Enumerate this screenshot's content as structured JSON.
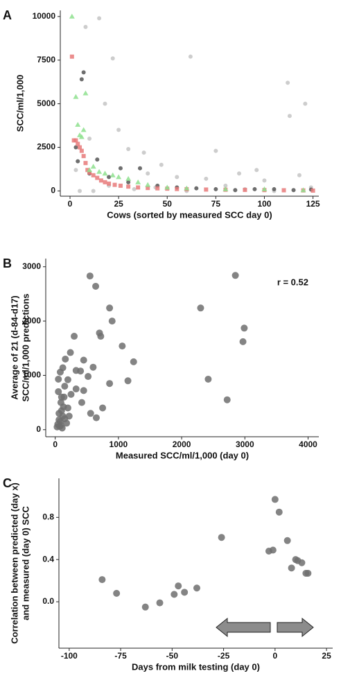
{
  "chart_data": [
    {
      "type": "scatter",
      "panel": "A",
      "x_label": "Cows (sorted by measured SCC day 0)",
      "y_label": [
        "SCC/ml/1,000"
      ],
      "xlim": [
        -5,
        128
      ],
      "ylim": [
        -300,
        10350
      ],
      "xticks": [
        0,
        25,
        50,
        75,
        100,
        125
      ],
      "yticks": [
        0,
        2500,
        5000,
        7500,
        10000
      ],
      "series": [
        {
          "color": "#c4c4c4",
          "marker": "circle",
          "x": [
            15,
            22,
            8,
            30,
            62,
            75,
            87,
            96,
            112,
            113,
            121,
            18,
            25,
            38,
            47,
            55,
            3,
            10,
            40,
            70,
            100,
            118,
            5,
            12,
            20,
            33,
            44,
            60,
            80,
            90,
            105,
            124
          ],
          "values": [
            9900,
            7600,
            9400,
            2400,
            7700,
            2300,
            1000,
            1200,
            6200,
            4300,
            5000,
            5000,
            3500,
            2200,
            1500,
            800,
            1200,
            3000,
            1000,
            700,
            600,
            900,
            0,
            0,
            300,
            100,
            200,
            0,
            300,
            100,
            0,
            200
          ]
        },
        {
          "color": "#555555",
          "marker": "circle",
          "x": [
            3,
            7,
            6,
            4,
            10,
            14,
            20,
            26,
            30,
            36,
            45,
            55,
            65,
            75,
            85,
            95,
            105,
            115,
            124
          ],
          "values": [
            2500,
            6800,
            6400,
            1700,
            1000,
            1800,
            800,
            1300,
            500,
            1300,
            300,
            200,
            150,
            100,
            50,
            100,
            100,
            50,
            80
          ]
        },
        {
          "color": "#e87a7a",
          "marker": "square",
          "x": [
            1,
            2,
            3,
            4,
            5,
            6,
            7,
            8,
            9,
            10,
            12,
            14,
            16,
            18,
            20,
            23,
            26,
            30,
            35,
            40,
            45,
            50,
            55,
            60,
            70,
            80,
            90,
            100,
            110,
            120,
            125
          ],
          "values": [
            7700,
            2900,
            2900,
            2700,
            2500,
            2300,
            2000,
            1600,
            1200,
            1050,
            900,
            750,
            600,
            500,
            420,
            350,
            300,
            250,
            200,
            170,
            150,
            130,
            110,
            100,
            80,
            70,
            60,
            50,
            40,
            30,
            20
          ]
        },
        {
          "color": "#8ee08e",
          "marker": "triangle",
          "x": [
            1,
            3,
            4,
            5,
            6,
            8,
            7,
            10,
            12,
            15,
            18,
            22,
            25,
            30,
            35,
            40,
            50,
            60,
            80,
            100,
            120
          ],
          "values": [
            10000,
            5400,
            3800,
            3200,
            3100,
            5600,
            3500,
            1200,
            1400,
            1100,
            1000,
            900,
            800,
            700,
            500,
            350,
            200,
            150,
            100,
            100,
            50
          ]
        }
      ]
    },
    {
      "type": "scatter",
      "panel": "B",
      "x_label": "Measured SCC/ml/1,000 (day 0)",
      "y_label": [
        "Average of 21 (d-84-d17)",
        "SCC/ml/1,000 predictions"
      ],
      "annotation": "r = 0.52",
      "xlim": [
        -150,
        4170
      ],
      "ylim": [
        -130,
        3150
      ],
      "xticks": [
        0,
        1000,
        2000,
        3000,
        4000
      ],
      "yticks": [
        0,
        1000,
        2000,
        3000
      ],
      "series": [
        {
          "color": "#6e6e6e",
          "marker": "circle",
          "x": [
            550,
            640,
            860,
            900,
            700,
            720,
            300,
            1060,
            1240,
            2300,
            2850,
            2990,
            2970,
            2420,
            2720,
            1150,
            860,
            600,
            240,
            450,
            330,
            400,
            160,
            120,
            80,
            50,
            200,
            520,
            560,
            650,
            750,
            420,
            330,
            450,
            150,
            100,
            90,
            60,
            120,
            80,
            40,
            70,
            110,
            150,
            200,
            250,
            50,
            100,
            30,
            60,
            130,
            90,
            180,
            220,
            140
          ],
          "values": [
            2830,
            2640,
            2240,
            2000,
            1780,
            1720,
            1720,
            1540,
            1250,
            2240,
            2840,
            1870,
            1620,
            930,
            550,
            900,
            850,
            1150,
            1420,
            1280,
            1090,
            1080,
            1300,
            1140,
            1060,
            930,
            920,
            980,
            300,
            220,
            400,
            500,
            750,
            720,
            800,
            600,
            500,
            300,
            250,
            150,
            100,
            60,
            30,
            200,
            400,
            650,
            700,
            350,
            50,
            180,
            420,
            80,
            120,
            250,
            600
          ]
        }
      ]
    },
    {
      "type": "scatter",
      "panel": "C",
      "x_label": "Days from milk testing (day 0)",
      "y_label": [
        "Correlation between predicted (day x)",
        "and measured (day 0) SCC"
      ],
      "xlim": [
        -105,
        28
      ],
      "ylim": [
        -0.44,
        1.17
      ],
      "xticks": [
        -100,
        -75,
        -50,
        -25,
        0,
        25
      ],
      "yticks": [
        {
          "value": 0,
          "label": "0.0"
        },
        0.4,
        0.8
      ],
      "series": [
        {
          "color": "#6e6e6e",
          "marker": "circle",
          "x": [
            -84,
            -77,
            -63,
            -56,
            -49,
            -47,
            -44,
            -38,
            -26,
            -3,
            -1,
            0,
            2,
            6,
            8,
            10,
            11,
            13,
            15,
            16
          ],
          "values": [
            0.21,
            0.08,
            -0.05,
            -0.01,
            0.07,
            0.15,
            0.09,
            0.13,
            0.61,
            0.48,
            0.49,
            0.97,
            0.85,
            0.58,
            0.32,
            0.4,
            0.39,
            0.37,
            0.27,
            0.27
          ]
        }
      ]
    }
  ]
}
